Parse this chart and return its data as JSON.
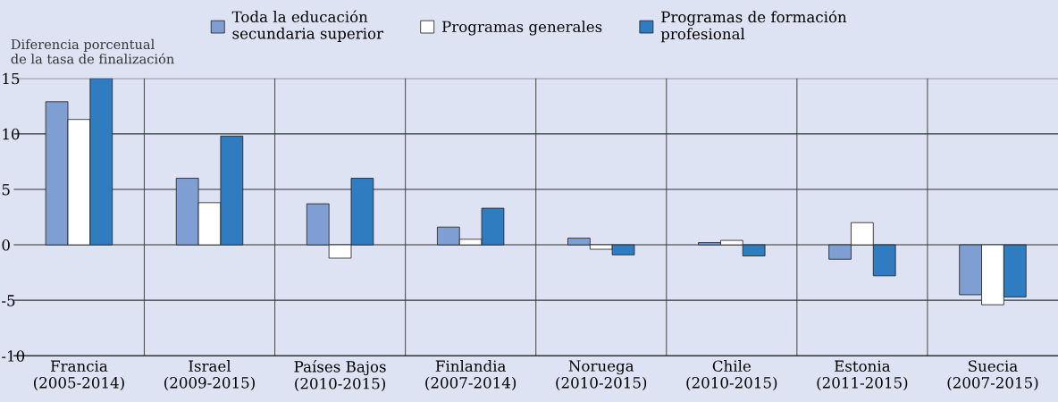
{
  "chart_data": {
    "type": "bar",
    "ylabel": "Diferencia porcentual\nde la tasa de finalización",
    "categories": [
      "Francia\n(2005-2014)",
      "Israel\n(2009-2015)",
      "Países Bajos\n(2010-2015)",
      "Finlandia\n(2007-2014)",
      "Noruega\n(2010-2015)",
      "Chile\n(2010-2015)",
      "Estonia\n(2011-2015)",
      "Suecia\n(2007-2015)"
    ],
    "series": [
      {
        "name": "Toda la educación\nsecundaria superior",
        "color": "#7f9fd3",
        "values": [
          12.9,
          6.0,
          3.7,
          1.6,
          0.6,
          0.2,
          -1.3,
          -4.5
        ]
      },
      {
        "name": "Programas generales",
        "color": "#ffffff",
        "values": [
          11.3,
          3.8,
          -1.2,
          0.5,
          -0.4,
          0.4,
          2.0,
          -5.4
        ]
      },
      {
        "name": "Programas de formación\nprofesional",
        "color": "#2f7cc1",
        "values": [
          15.0,
          9.8,
          6.0,
          3.3,
          -0.9,
          -1.0,
          -2.8,
          -4.7
        ]
      }
    ],
    "ylim": [
      -10,
      15
    ],
    "yticks": [
      -10,
      -5,
      0,
      5,
      10,
      15
    ],
    "grid": true,
    "legend": "top"
  }
}
